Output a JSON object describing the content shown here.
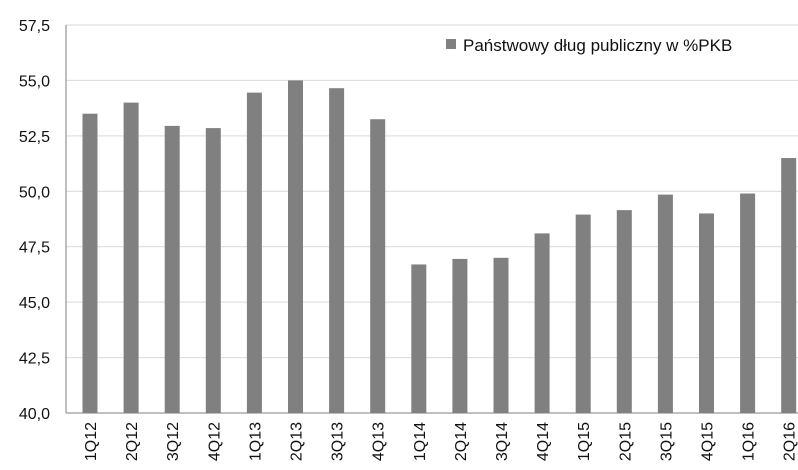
{
  "chart_data": {
    "type": "bar",
    "categories": [
      "1Q12",
      "2Q12",
      "3Q12",
      "4Q12",
      "1Q13",
      "2Q13",
      "3Q13",
      "4Q13",
      "1Q14",
      "2Q14",
      "3Q14",
      "4Q14",
      "1Q15",
      "2Q15",
      "3Q15",
      "4Q15",
      "1Q16",
      "2Q16"
    ],
    "series": [
      {
        "name": "Państwowy dług publiczny w %PKB",
        "values": [
          53.5,
          54.0,
          52.95,
          52.85,
          54.45,
          55.0,
          54.65,
          53.25,
          46.7,
          46.95,
          47.0,
          48.1,
          48.95,
          49.15,
          49.85,
          49.0,
          49.9,
          51.5
        ]
      }
    ],
    "yticks": [
      "40,0",
      "42,5",
      "45,0",
      "47,5",
      "50,0",
      "52,5",
      "55,0",
      "57,5"
    ],
    "ylim": [
      40,
      57.5
    ],
    "grid": true,
    "legend_position": "top-right",
    "colors": {
      "bar": "#808080",
      "grid": "#d9d9d9",
      "axis": "#7f7f7f"
    }
  }
}
